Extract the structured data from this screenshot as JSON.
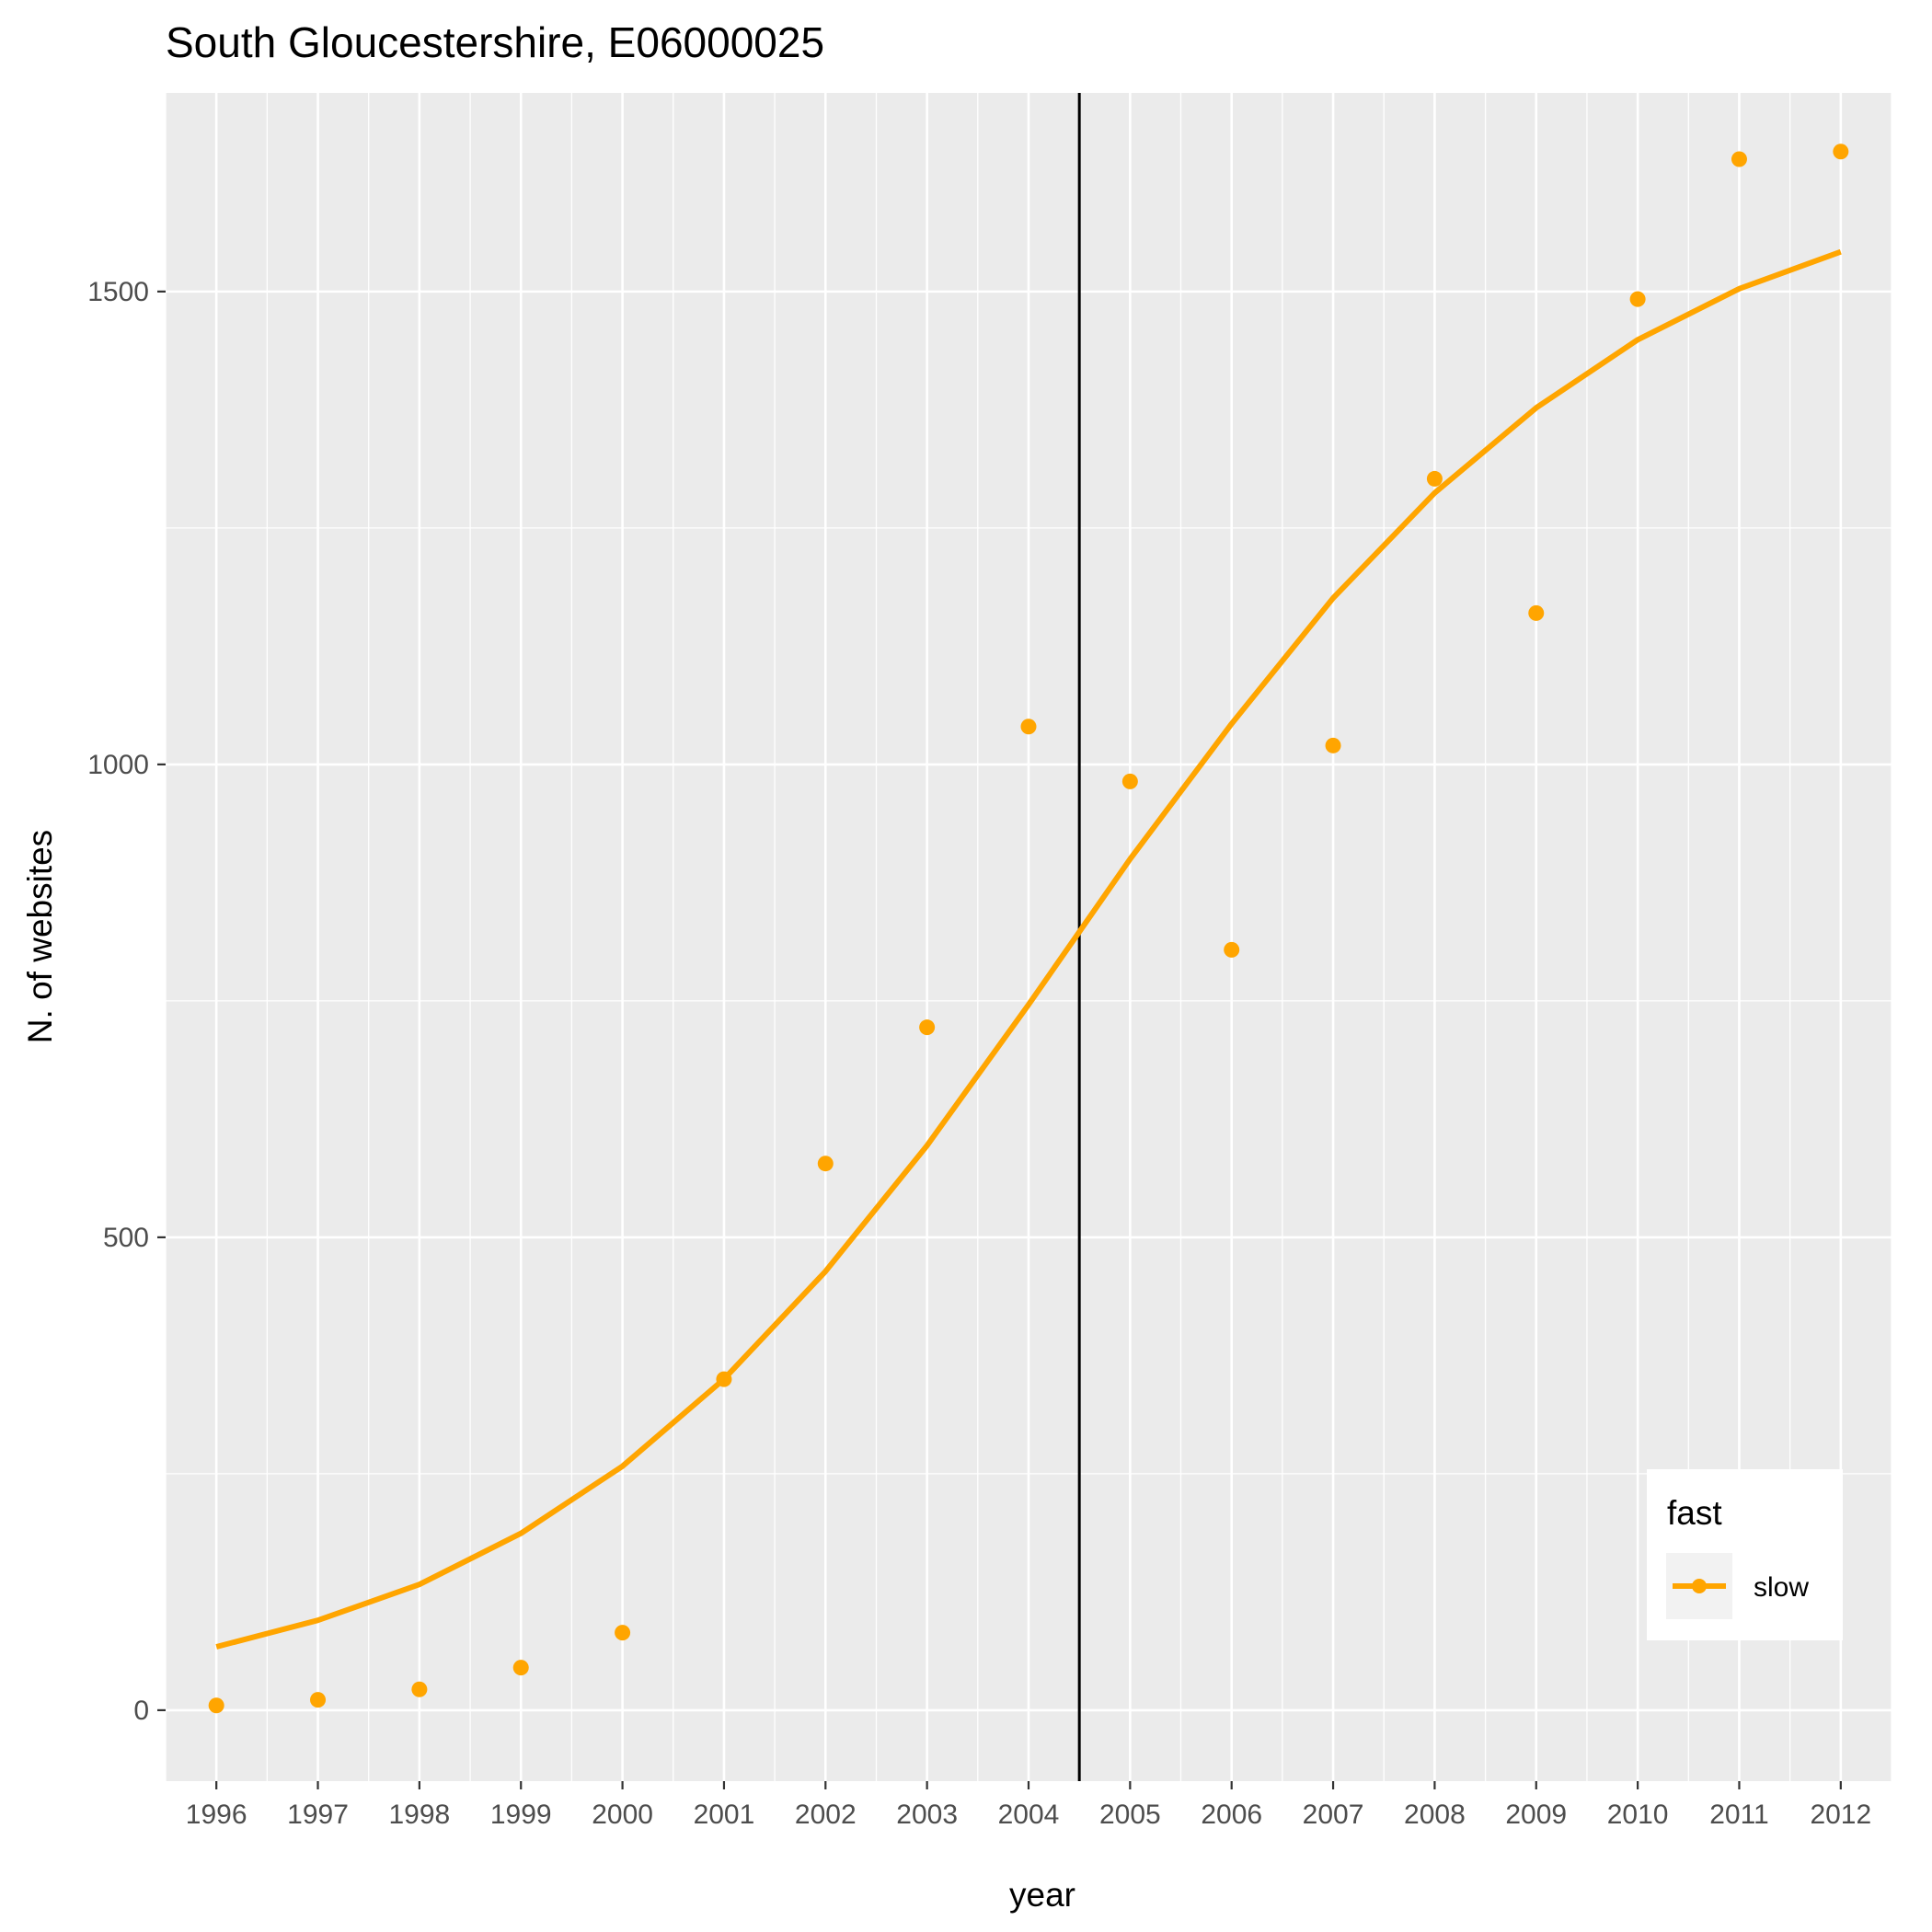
{
  "chart_data": {
    "type": "line",
    "title": "South Gloucestershire, E06000025",
    "xlabel": "year",
    "ylabel": "N. of websites",
    "x": [
      1996,
      1997,
      1998,
      1999,
      2000,
      2001,
      2002,
      2003,
      2004,
      2005,
      2006,
      2007,
      2008,
      2009,
      2010,
      2011,
      2012
    ],
    "x_tick_labels": [
      "1996",
      "1997",
      "1998",
      "1999",
      "2000",
      "2001",
      "2002",
      "2003",
      "2004",
      "2005",
      "2006",
      "2007",
      "2008",
      "2009",
      "2010",
      "2011",
      "2012"
    ],
    "y_ticks": [
      0,
      500,
      1000,
      1500
    ],
    "y_tick_labels": [
      "0",
      "500",
      "1000",
      "1500"
    ],
    "xlim": [
      1995.5,
      2012.5
    ],
    "ylim": [
      -75,
      1710
    ],
    "series": [
      {
        "name": "slow",
        "color": "#FFA500",
        "points": [
          5,
          11,
          22,
          45,
          82,
          350,
          578,
          722,
          1040,
          982,
          804,
          1020,
          1302,
          1160,
          1492,
          1640,
          1648
        ],
        "fitted_line": [
          67,
          95,
          133,
          187,
          258,
          350,
          464,
          597,
          746,
          900,
          1043,
          1176,
          1287,
          1377,
          1449,
          1503,
          1542
        ]
      }
    ],
    "vline": {
      "x": 2004.5,
      "color": "#000000"
    },
    "legend": {
      "title": "fast",
      "entries": [
        "slow"
      ],
      "position": "bottom-right"
    },
    "grid": true,
    "panel_background": "#EBEBEB",
    "grid_color": "#FFFFFF"
  }
}
